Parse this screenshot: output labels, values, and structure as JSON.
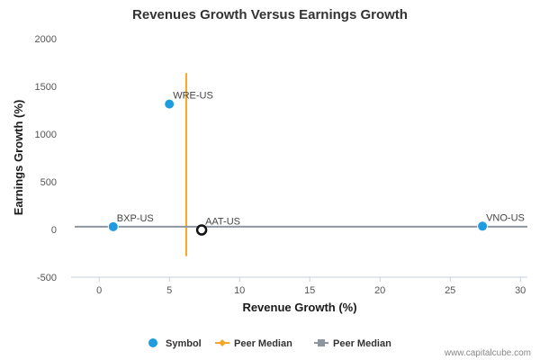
{
  "chart_data": {
    "type": "scatter",
    "title": "Revenues Growth Versus Earnings Growth",
    "xlabel": "Revenue Growth (%)",
    "ylabel": "Earnings Growth (%)",
    "xlim": [
      -2,
      30.5
    ],
    "ylim": [
      -500,
      2000
    ],
    "xticks": [
      0,
      5,
      10,
      15,
      20,
      25,
      30
    ],
    "yticks": [
      -500,
      0,
      500,
      1000,
      1500,
      2000
    ],
    "grid": false,
    "legend_placement": "bottom-center",
    "series": [
      {
        "name": "Symbol",
        "color": "#1f9be0",
        "points": [
          {
            "label": "WRE-US",
            "x": 5.0,
            "y": 1315
          },
          {
            "label": "BXP-US",
            "x": 1.0,
            "y": 30
          },
          {
            "label": "AAT-US",
            "x": 7.3,
            "y": -5,
            "highlight": true
          },
          {
            "label": "VNO-US",
            "x": 27.3,
            "y": 35
          }
        ]
      }
    ],
    "reference_lines": [
      {
        "name": "Peer Median",
        "orientation": "vertical",
        "value": 6.2,
        "range": [
          -280,
          1640
        ],
        "color": "#f5a623"
      },
      {
        "name": "Peer Median",
        "orientation": "horizontal",
        "value": 30,
        "color": "#8c96a3"
      }
    ],
    "legend": [
      {
        "label": "Symbol",
        "marker": "circle",
        "color": "#1f9be0"
      },
      {
        "label": "Peer Median",
        "marker": "line-diamond",
        "color": "#f5a623"
      },
      {
        "label": "Peer Median",
        "marker": "line-square",
        "color": "#8c96a3"
      }
    ]
  },
  "credit": "www.capitalcube.com"
}
